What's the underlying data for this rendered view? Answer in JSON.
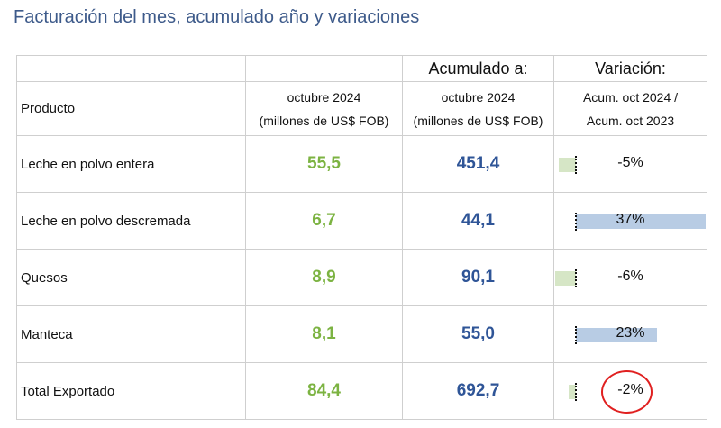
{
  "title": "Facturación del mes, acumulado año y variaciones",
  "header": {
    "producto": "Producto",
    "mes_line1": "octubre 2024",
    "mes_line2": "(millones de US$ FOB)",
    "acum_top": "Acumulado a:",
    "acum_line1": "octubre 2024",
    "acum_line2": "(millones de US$ FOB)",
    "var_top": "Variación:",
    "var_line1": "Acum. oct 2024 /",
    "var_line2": "Acum. oct 2023"
  },
  "rows": [
    {
      "producto": "Leche en polvo entera",
      "mes": "55,5",
      "acumulado": "451,4",
      "variacion": "-5%",
      "variacion_value": -5
    },
    {
      "producto": "Leche en polvo descremada",
      "mes": "6,7",
      "acumulado": "44,1",
      "variacion": "37%",
      "variacion_value": 37
    },
    {
      "producto": "Quesos",
      "mes": "8,9",
      "acumulado": "90,1",
      "variacion": "-6%",
      "variacion_value": -6
    },
    {
      "producto": "Manteca",
      "mes": "8,1",
      "acumulado": "55,0",
      "variacion": "23%",
      "variacion_value": 23
    },
    {
      "producto": "Total Exportado",
      "mes": "84,4",
      "acumulado": "692,7",
      "variacion": "-2%",
      "variacion_value": -2
    }
  ],
  "colors": {
    "title": "#3d5a8a",
    "mes_values": "#7cb342",
    "acumulado_values": "#2f5597",
    "negative_bar": "#d6e6c6",
    "positive_bar": "#b8cce4",
    "highlight_circle": "#e02020"
  }
}
